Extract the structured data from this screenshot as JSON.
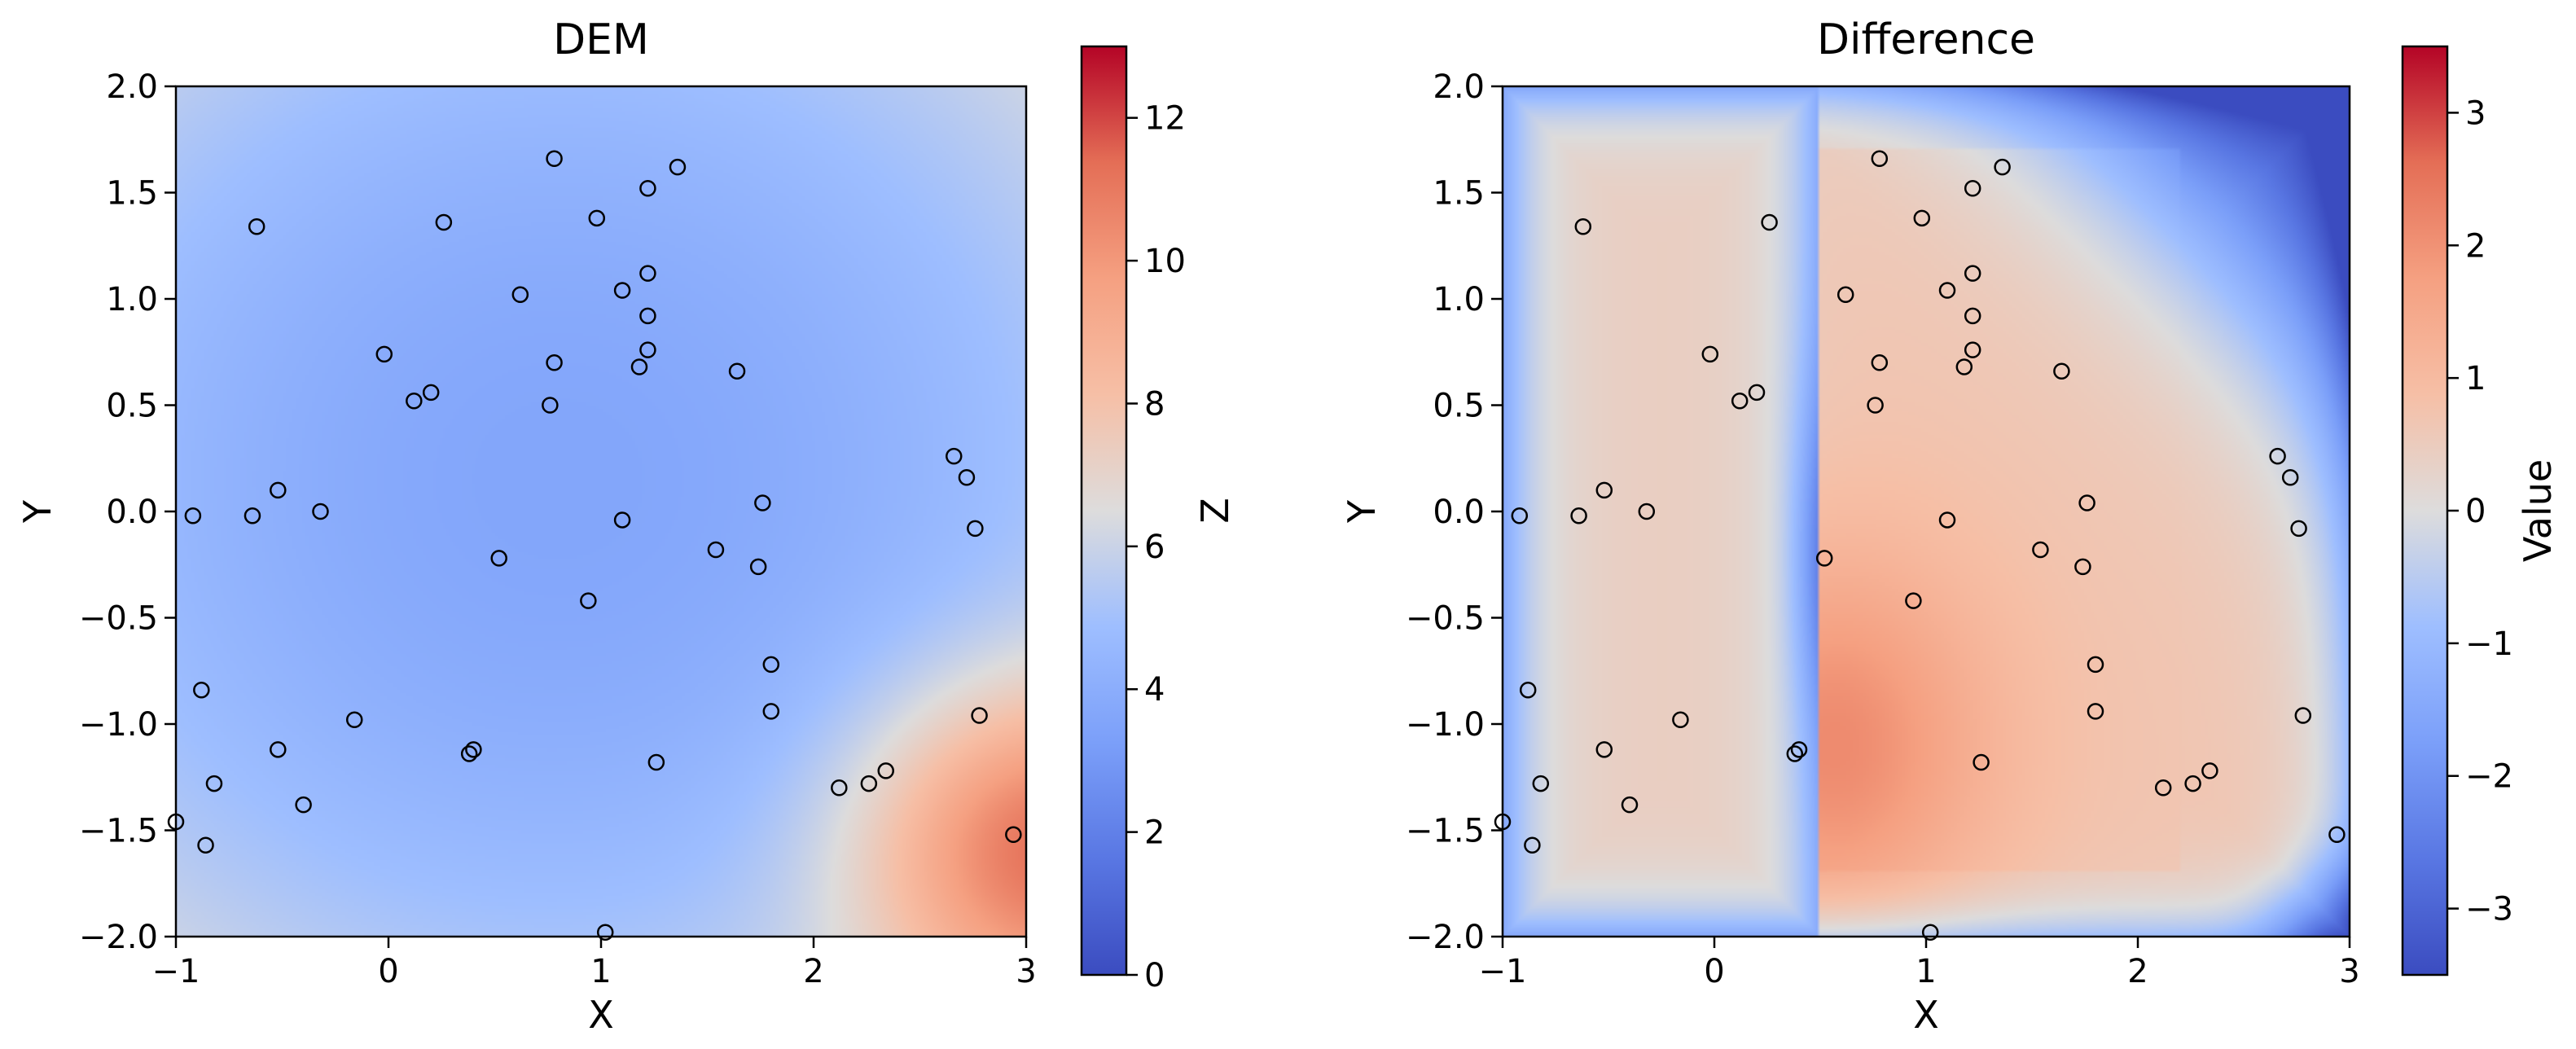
{
  "chart_data": [
    {
      "type": "heatmap",
      "title": "DEM",
      "xlabel": "X",
      "ylabel": "Y",
      "xlim": [
        -1,
        3
      ],
      "ylim": [
        -2,
        2
      ],
      "xticks": [
        -1,
        0,
        1,
        2,
        3
      ],
      "yticks": [
        -2.0,
        -1.5,
        -1.0,
        -0.5,
        0.0,
        0.5,
        1.0,
        1.5,
        2.0
      ],
      "colormap": "coolwarm",
      "colorbar": {
        "label": "Z",
        "range": [
          0,
          13
        ],
        "ticks": [
          0,
          2,
          4,
          6,
          8,
          10,
          12
        ]
      },
      "field_description": "smooth interpolated elevation; minimum ~3.5 near (0.8, 0.2), rising to ~10 at lower-right (3, -1.5)"
    },
    {
      "type": "heatmap",
      "title": "Difference",
      "xlabel": "X",
      "ylabel": "Y",
      "xlim": [
        -1,
        3
      ],
      "ylim": [
        -2,
        2
      ],
      "xticks": [
        -1,
        0,
        1,
        2,
        3
      ],
      "yticks": [
        -2.0,
        -1.5,
        -1.0,
        -0.5,
        0.0,
        0.5,
        1.0,
        1.5,
        2.0
      ],
      "colormap": "coolwarm",
      "colorbar": {
        "label": "Value",
        "range": [
          -3.5,
          3.5
        ],
        "ticks": [
          -3,
          -2,
          -1,
          0,
          1,
          2,
          3
        ]
      },
      "discontinuity_x": 0.5,
      "field_description": "vertical discontinuity at x=0.5; positive (~2.5) just right of it near y=-1.1; strongly negative (~-3.4) in upper-right corner"
    }
  ],
  "points": [
    [
      -1.0,
      -1.46
    ],
    [
      -0.92,
      -0.02
    ],
    [
      -0.88,
      -0.84
    ],
    [
      -0.86,
      -1.57
    ],
    [
      -0.82,
      -1.28
    ],
    [
      -0.62,
      1.34
    ],
    [
      -0.64,
      -0.02
    ],
    [
      -0.52,
      0.1
    ],
    [
      -0.52,
      -1.12
    ],
    [
      -0.4,
      -1.38
    ],
    [
      -0.32,
      0.0
    ],
    [
      -0.16,
      -0.98
    ],
    [
      -0.02,
      0.74
    ],
    [
      0.12,
      0.52
    ],
    [
      0.2,
      0.56
    ],
    [
      0.26,
      1.36
    ],
    [
      0.38,
      -1.14
    ],
    [
      0.4,
      -1.12
    ],
    [
      0.52,
      -0.22
    ],
    [
      0.62,
      1.02
    ],
    [
      0.76,
      0.5
    ],
    [
      0.78,
      1.66
    ],
    [
      0.78,
      0.7
    ],
    [
      0.94,
      -0.42
    ],
    [
      0.98,
      1.38
    ],
    [
      1.02,
      -1.98
    ],
    [
      1.1,
      1.04
    ],
    [
      1.1,
      -0.04
    ],
    [
      1.18,
      0.68
    ],
    [
      1.22,
      1.52
    ],
    [
      1.22,
      1.12
    ],
    [
      1.22,
      0.92
    ],
    [
      1.22,
      0.76
    ],
    [
      1.26,
      -1.18
    ],
    [
      1.36,
      1.62
    ],
    [
      1.54,
      -0.18
    ],
    [
      1.64,
      0.66
    ],
    [
      1.74,
      -0.26
    ],
    [
      1.76,
      0.04
    ],
    [
      1.8,
      -0.72
    ],
    [
      1.8,
      -0.94
    ],
    [
      2.12,
      -1.3
    ],
    [
      2.26,
      -1.28
    ],
    [
      2.34,
      -1.22
    ],
    [
      2.66,
      0.26
    ],
    [
      2.72,
      0.16
    ],
    [
      2.76,
      -0.08
    ],
    [
      2.78,
      -0.96
    ],
    [
      2.94,
      -1.52
    ]
  ]
}
